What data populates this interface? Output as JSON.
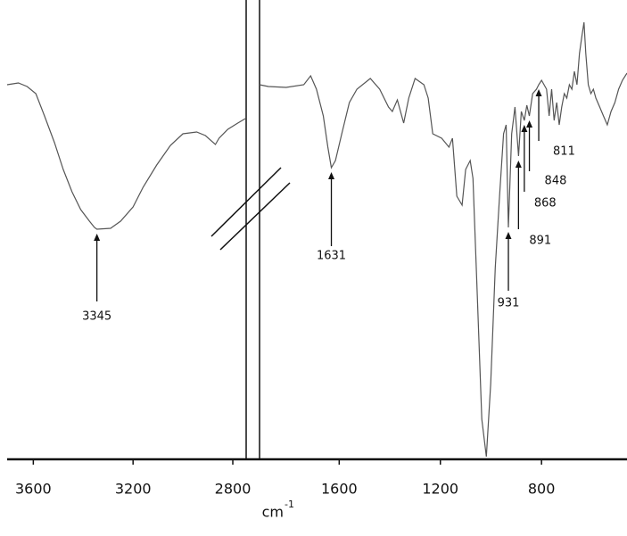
{
  "chart_data": {
    "type": "line",
    "xlabel": "cm",
    "xlabel_exponent": "-1",
    "color": "#555555",
    "ylim": [
      0,
      100
    ],
    "panels": [
      {
        "xlim": [
          3705,
          2750
        ],
        "xticks": [
          3600,
          3200,
          2800
        ],
        "x": [
          3705,
          3660,
          3625,
          3590,
          3555,
          3515,
          3480,
          3445,
          3410,
          3375,
          3355,
          3345,
          3290,
          3250,
          3200,
          3160,
          3105,
          3050,
          3000,
          2945,
          2910,
          2870,
          2855,
          2820,
          2780,
          2750
        ],
        "values": [
          84,
          84.4,
          83.6,
          82,
          77,
          71,
          65,
          60,
          56,
          53.4,
          52,
          51.6,
          51.8,
          53.4,
          56.6,
          61,
          66,
          70.4,
          73,
          73.4,
          72.6,
          70.6,
          72,
          74,
          75.4,
          76.4
        ]
      },
      {
        "xlim": [
          1915,
          462
        ],
        "xticks": [
          1600,
          1200,
          800
        ],
        "x": [
          1915,
          1880,
          1810,
          1740,
          1713,
          1690,
          1663,
          1645,
          1631,
          1615,
          1590,
          1560,
          1530,
          1477,
          1440,
          1405,
          1390,
          1370,
          1345,
          1325,
          1300,
          1265,
          1248,
          1230,
          1195,
          1166,
          1152,
          1135,
          1114,
          1100,
          1082,
          1071,
          1054,
          1036,
          1018,
          1001,
          983,
          966,
          950,
          940,
          931,
          918,
          905,
          891,
          880,
          868,
          858,
          848,
          835,
          820,
          811,
          800,
          780,
          770,
          760,
          750,
          740,
          730,
          720,
          710,
          700,
          690,
          680,
          670,
          660,
          650,
          640,
          632,
          625,
          615,
          605,
          595,
          585,
          570,
          555,
          540,
          525,
          510,
          495,
          480,
          462
        ],
        "values": [
          84,
          83.6,
          83.4,
          84,
          86,
          83,
          77,
          70,
          65.4,
          67,
          73,
          80,
          83,
          85.4,
          83,
          79,
          78,
          80.6,
          75.4,
          81,
          85.4,
          84,
          81,
          73,
          72,
          70,
          72,
          59,
          57,
          65,
          67,
          63,
          37,
          9,
          0.6,
          17,
          43,
          59,
          73,
          75,
          52,
          73,
          79,
          68,
          78,
          76,
          79.4,
          77,
          82,
          83,
          84,
          85,
          83,
          77,
          83,
          76,
          80,
          75,
          79,
          82,
          81,
          84,
          83,
          87,
          84,
          91,
          95,
          98,
          91,
          84,
          82,
          83,
          81,
          79,
          77,
          75,
          78,
          80,
          83,
          85,
          86.6
        ]
      }
    ],
    "annotations": [
      3345,
      1631,
      931,
      891,
      868,
      848,
      811
    ]
  }
}
